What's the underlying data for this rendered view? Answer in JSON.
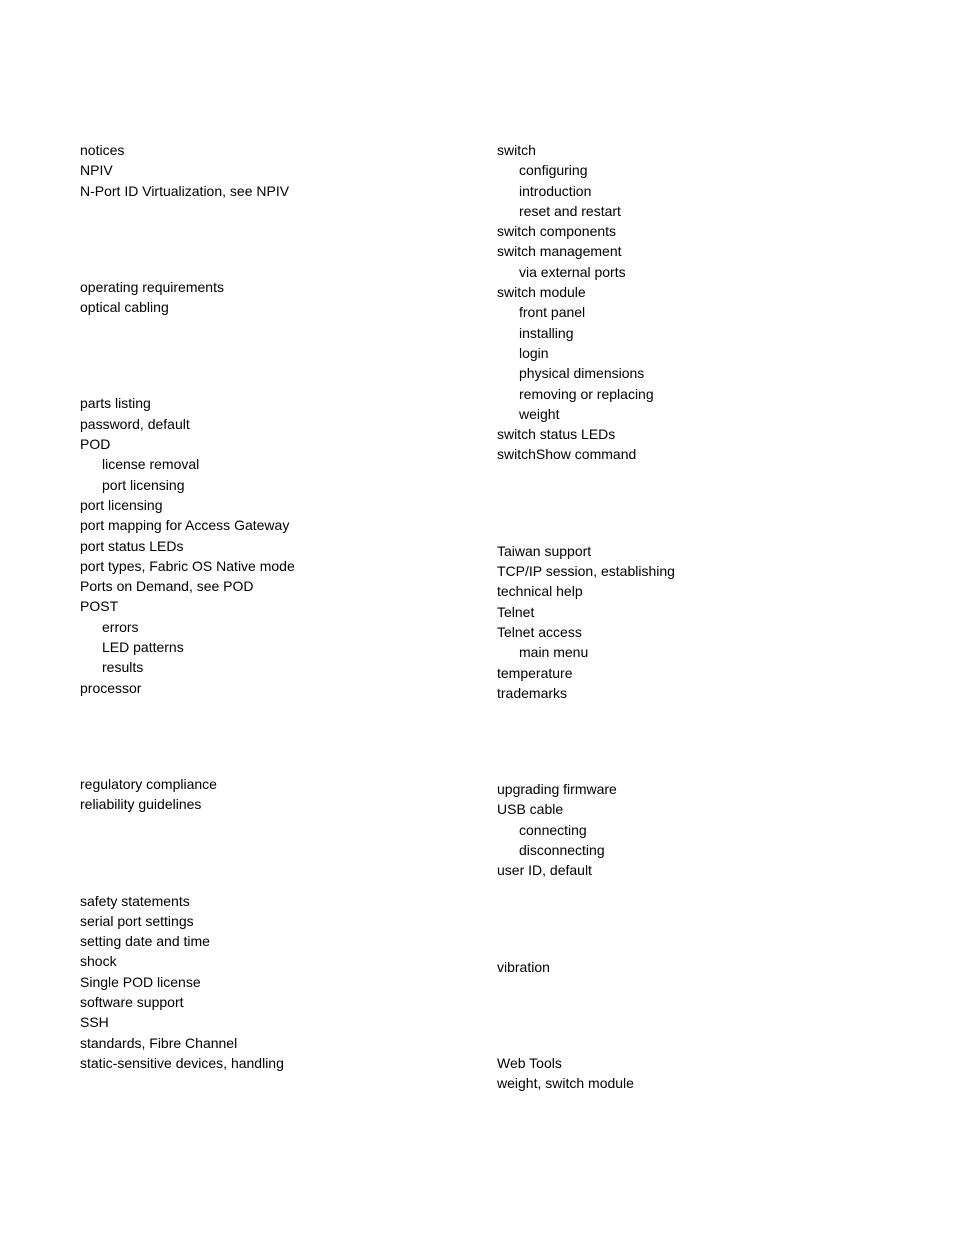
{
  "left": [
    {
      "text": "notices",
      "indent": 0
    },
    {
      "text": "NPIV",
      "indent": 0
    },
    {
      "text": "N-Port ID Virtualization, see NPIV",
      "indent": 0
    },
    {
      "gap": true
    },
    {
      "text": "operating requirements",
      "indent": 0
    },
    {
      "text": "optical cabling",
      "indent": 0
    },
    {
      "gap": true
    },
    {
      "text": "parts listing",
      "indent": 0
    },
    {
      "text": "password, default",
      "indent": 0
    },
    {
      "text": "POD",
      "indent": 0
    },
    {
      "text": "license removal",
      "indent": 1
    },
    {
      "text": "port licensing",
      "indent": 1
    },
    {
      "text": "port licensing",
      "indent": 0
    },
    {
      "text": "port mapping for Access Gateway",
      "indent": 0
    },
    {
      "text": "port status LEDs",
      "indent": 0
    },
    {
      "text": "port types, Fabric OS Native mode",
      "indent": 0
    },
    {
      "text": "Ports on Demand, see POD",
      "indent": 0
    },
    {
      "text": "POST",
      "indent": 0
    },
    {
      "text": "errors",
      "indent": 1
    },
    {
      "text": "LED patterns",
      "indent": 1
    },
    {
      "text": "results",
      "indent": 1
    },
    {
      "text": "processor",
      "indent": 0
    },
    {
      "gap": true
    },
    {
      "text": "regulatory compliance",
      "indent": 0
    },
    {
      "text": "reliability guidelines",
      "indent": 0
    },
    {
      "gap": true
    },
    {
      "text": "safety statements",
      "indent": 0
    },
    {
      "text": "serial port settings",
      "indent": 0
    },
    {
      "text": "setting date and time",
      "indent": 0
    },
    {
      "text": "shock",
      "indent": 0
    },
    {
      "text": "Single POD license",
      "indent": 0
    },
    {
      "text": "software support",
      "indent": 0
    },
    {
      "text": "SSH",
      "indent": 0
    },
    {
      "text": "standards, Fibre Channel",
      "indent": 0
    },
    {
      "text": "static-sensitive devices, handling",
      "indent": 0
    }
  ],
  "right": [
    {
      "text": "switch",
      "indent": 0
    },
    {
      "text": "configuring",
      "indent": 1
    },
    {
      "text": "introduction",
      "indent": 1
    },
    {
      "text": "reset and restart",
      "indent": 1
    },
    {
      "text": "switch components",
      "indent": 0
    },
    {
      "text": "switch management",
      "indent": 0
    },
    {
      "text": "via external ports",
      "indent": 1
    },
    {
      "text": "switch module",
      "indent": 0
    },
    {
      "text": "front panel",
      "indent": 1
    },
    {
      "text": "installing",
      "indent": 1
    },
    {
      "text": "login",
      "indent": 1
    },
    {
      "text": "physical dimensions",
      "indent": 1
    },
    {
      "text": "removing or replacing",
      "indent": 1
    },
    {
      "text": "weight",
      "indent": 1
    },
    {
      "text": "switch status LEDs",
      "indent": 0
    },
    {
      "text": "switchShow command",
      "indent": 0
    },
    {
      "gap": true
    },
    {
      "text": "Taiwan support",
      "indent": 0
    },
    {
      "text": "TCP/IP session, establishing",
      "indent": 0
    },
    {
      "text": "technical help",
      "indent": 0
    },
    {
      "text": "Telnet",
      "indent": 0
    },
    {
      "text": "Telnet access",
      "indent": 0
    },
    {
      "text": "main menu",
      "indent": 1
    },
    {
      "text": "temperature",
      "indent": 0
    },
    {
      "text": "trademarks",
      "indent": 0
    },
    {
      "gap": true
    },
    {
      "text": "upgrading firmware",
      "indent": 0
    },
    {
      "text": "USB cable",
      "indent": 0
    },
    {
      "text": "connecting",
      "indent": 1
    },
    {
      "text": "disconnecting",
      "indent": 1
    },
    {
      "text": "user ID, default",
      "indent": 0
    },
    {
      "gap": true
    },
    {
      "text": "vibration",
      "indent": 0
    },
    {
      "gap": true
    },
    {
      "text": "Web Tools",
      "indent": 0
    },
    {
      "text": "weight, switch module",
      "indent": 0
    }
  ]
}
